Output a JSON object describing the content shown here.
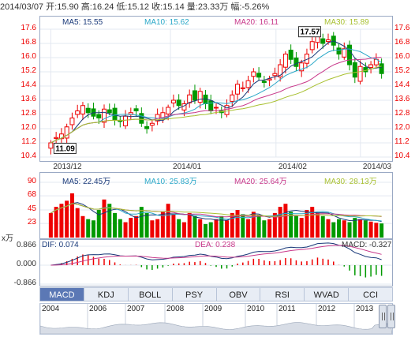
{
  "header": {
    "date": "2014/03/07",
    "open_label": "开:",
    "open": "15.90",
    "high_label": "高:",
    "high": "16.24",
    "low_label": "低:",
    "low": "15.12",
    "close_label": "收:",
    "close": "15.14",
    "volume_label": "量:",
    "volume": "23.33万",
    "change_label": "幅:",
    "change": "-5.26%"
  },
  "price_chart": {
    "ma5": "MA5: 15.55",
    "ma10": "MA10: 15.62",
    "ma20": "MA20: 16.11",
    "ma30": "MA30: 15.89",
    "y_ticks": [
      "17.6",
      "16.8",
      "16.0",
      "15.2",
      "14.4",
      "13.6",
      "12.8",
      "12.0",
      "11.2",
      "10.4"
    ],
    "x_ticks": [
      "2013/12",
      "2014/01",
      "2014/02",
      "2014/03"
    ],
    "max_callout": "17.57",
    "min_callout": "11.09",
    "colors": {
      "ma5": "#1a3a7a",
      "ma10": "#2aa8c8",
      "ma20": "#c8388a",
      "ma30": "#a8c030",
      "up": "#e00",
      "down": "#090"
    }
  },
  "volume_chart": {
    "ma5": "MA5: 22.45万",
    "ma10": "MA10: 25.83万",
    "ma20": "MA20: 25.64万",
    "ma30": "MA30: 28.13万",
    "y_ticks": [
      "90",
      "68",
      "45",
      "23"
    ],
    "unit": "x万"
  },
  "macd_chart": {
    "dif": "DIF: 0.074",
    "dea": "DEA: 0.238",
    "macd": "MACD: -0.327",
    "y_ticks": [
      "0.866",
      "0.000",
      "-0.866"
    ]
  },
  "tabs": [
    "MACD",
    "KDJ",
    "BOLL",
    "PSY",
    "OBV",
    "RSI",
    "WVAD",
    "CCI"
  ],
  "active_tab": "MACD",
  "timeline": {
    "years": [
      "2004",
      "2006",
      "2007",
      "2008",
      "2009",
      "2010",
      "2011",
      "2012",
      "2013"
    ]
  },
  "chart_data": {
    "type": "candlestick",
    "closes": [
      11.2,
      11.5,
      11.7,
      12.1,
      12.6,
      13.0,
      13.3,
      12.9,
      12.7,
      12.6,
      13.1,
      12.9,
      12.5,
      12.4,
      12.7,
      12.9,
      13.0,
      12.3,
      12.0,
      12.3,
      12.8,
      12.9,
      13.2,
      13.6,
      13.3,
      13.4,
      13.9,
      13.6,
      14.1,
      13.4,
      13.0,
      13.2,
      12.9,
      13.3,
      13.9,
      14.5,
      14.3,
      14.7,
      15.2,
      14.9,
      14.6,
      14.8,
      15.1,
      15.6,
      16.2,
      15.9,
      15.5,
      15.7,
      16.2,
      16.9,
      17.3,
      16.8,
      17.0,
      16.7,
      16.2,
      16.5,
      15.6,
      14.9,
      15.5,
      15.2,
      15.6,
      15.9,
      15.1
    ],
    "volumes": [
      40,
      50,
      55,
      60,
      72,
      48,
      35,
      30,
      28,
      45,
      62,
      55,
      40,
      30,
      25,
      32,
      35,
      50,
      40,
      28,
      30,
      42,
      55,
      38,
      30,
      25,
      40,
      35,
      30,
      22,
      25,
      30,
      35,
      28,
      40,
      45,
      38,
      30,
      42,
      36,
      28,
      30,
      40,
      50,
      55,
      42,
      35,
      32,
      45,
      50,
      40,
      35,
      30,
      25,
      30,
      28,
      25,
      32,
      30,
      28,
      26,
      24,
      23
    ],
    "ylim": [
      10.4,
      17.6
    ],
    "volume_ylim": [
      0,
      90
    ],
    "macd_ylim": [
      -0.866,
      0.866
    ]
  }
}
